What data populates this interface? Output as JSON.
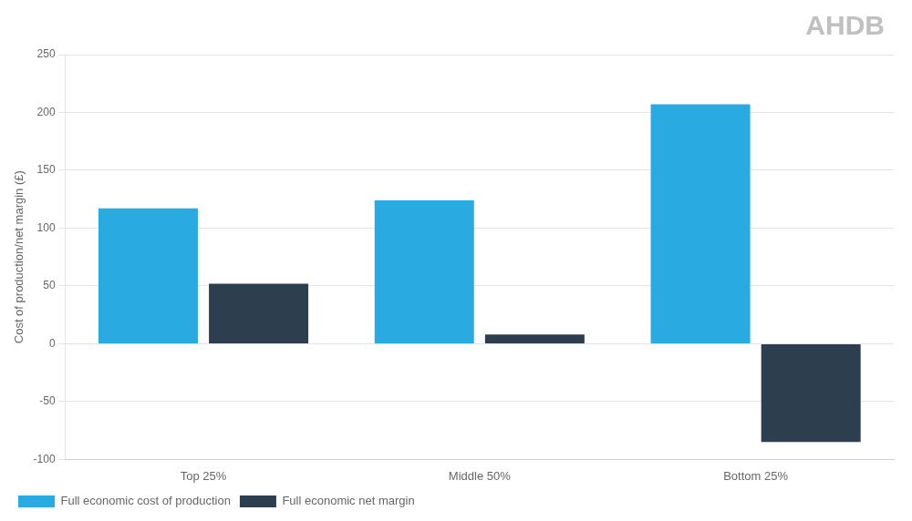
{
  "chart_data": {
    "type": "bar",
    "ylabel": "Cost of production/net margin (£)",
    "categories": [
      "Top 25%",
      "Middle 50%",
      "Bottom 25%"
    ],
    "series": [
      {
        "name": "Full economic cost of production",
        "color": "#29ABE2",
        "values": [
          117,
          124,
          207
        ]
      },
      {
        "name": "Full economic net margin",
        "color": "#2D3F4E",
        "values": [
          52,
          8,
          -85
        ]
      }
    ],
    "ylim": [
      -100,
      250
    ],
    "yticks": [
      -100,
      -50,
      0,
      50,
      100,
      150,
      200,
      250
    ],
    "grid": true,
    "legend": "lower left",
    "annotations": [
      {
        "text": "AHDB",
        "color": "#c0c0c0"
      }
    ]
  }
}
